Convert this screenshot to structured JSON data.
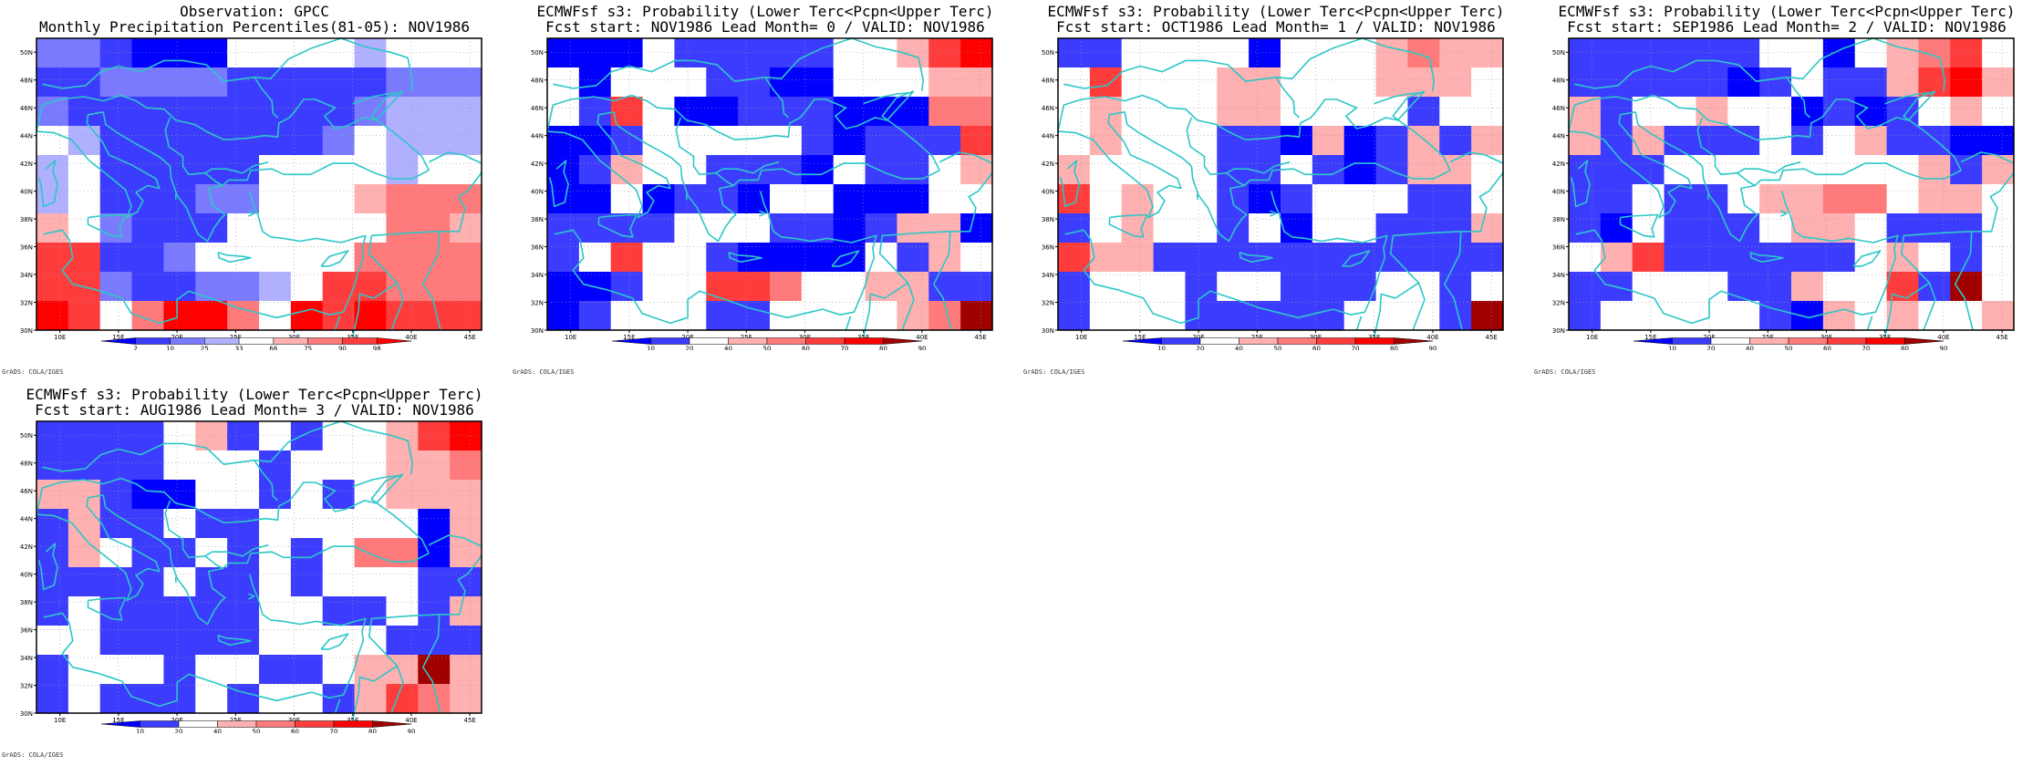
{
  "lat_labels": [
    "50N",
    "48N",
    "46N",
    "44N",
    "42N",
    "40N",
    "38N",
    "36N",
    "34N",
    "32N",
    "30N"
  ],
  "lon_labels": [
    "10E",
    "15E",
    "20E",
    "25E",
    "30E",
    "35E",
    "40E",
    "45E"
  ],
  "credit": "GrADS: COLA/IGES",
  "coastline_color": "#2cc7c7",
  "grid_rows": 10,
  "grid_cols": 14,
  "palettes": {
    "percentile": [
      "#0000ff",
      "#3c3cff",
      "#7a7aff",
      "#b0b0ff",
      "#ffffff",
      "#ffb0b0",
      "#ff7a7a",
      "#ff3c3c",
      "#ff0000"
    ],
    "probability": [
      "#0000ff",
      "#3c3cff",
      "#ffffff",
      "#ffb0b0",
      "#ff7a7a",
      "#ff3c3c",
      "#ff0000",
      "#a00000"
    ]
  },
  "panels": [
    {
      "title1": "Observation: GPCC",
      "title2": "Monthly Precipitation Percentiles(81-05): NOV1986",
      "palette": "percentile",
      "colorbar_labels": [
        "2",
        "10",
        "25",
        "33",
        "66",
        "75",
        "90",
        "98"
      ],
      "grid": [
        "22100044443444",
        "11222211111222",
        "21111111112333",
        "43111111124333",
        "34111114444344",
        "34111224445666",
        "54211144444665",
        "77112444446666",
        "77211223477666",
        "87468864878777"
      ]
    },
    {
      "title1": "ECMWFsf s3: Probability (Lower Terc<Pcpn<Upper Terc)",
      "title2": "Fcst start: NOV1986  Lead Month= 0 / VALID: NOV1986",
      "palette": "probability",
      "colorbar_labels": [
        "10",
        "20",
        "40",
        "50",
        "60",
        "70",
        "80",
        "90"
      ],
      "grid": [
        "00021111122356",
        "20222110022233",
        "21520011100044",
        "00122222101115",
        "01322111021123",
        "00201102200022",
        "11112221101330",
        "12522100002132",
        "00122554223311",
        "01222112222347"
      ]
    },
    {
      "title1": "ECMWFsf s3: Probability (Lower Terc<Pcpn<Upper Terc)",
      "title2": "Fcst start: OCT1986  Lead Month= 1 / VALID: NOV1986",
      "palette": "probability",
      "colorbar_labels": [
        "10",
        "20",
        "40",
        "50",
        "60",
        "70",
        "80",
        "90"
      ],
      "grid": [
        "11222202223433",
        "25222332223332",
        "23222332222122",
        "23222110301313",
        "32222112101332",
        "52322101222112",
        "12322120221113",
        "53311111111111",
        "12221221112212",
        "12221111122217"
      ]
    },
    {
      "title1": "ECMWFsf s3: Probability (Lower Terc<Pcpn<Upper Terc)",
      "title2": "Fcst start: SEP1986  Lead Month= 2 / VALID: NOV1986",
      "palette": "probability",
      "colorbar_labels": [
        "10",
        "20",
        "40",
        "50",
        "60",
        "70",
        "80",
        "90"
      ],
      "grid": [
        "11111122023452",
        "11111012113563",
        "31223220101232",
        "31311121231100",
        "11122222222313",
        "11211233442332",
        "10211123321112",
        "23511111123212",
        "11222113225172",
        "12222210323223"
      ]
    },
    {
      "title1": "ECMWFsf s3: Probability (Lower Terc<Pcpn<Upper Terc)",
      "title2": "Fcst start: AUG1986  Lead Month= 3 / VALID: NOV1986",
      "palette": "probability",
      "colorbar_labels": [
        "10",
        "20",
        "40",
        "50",
        "60",
        "70",
        "80",
        "90"
      ],
      "grid": [
        "11112312122356",
        "11112221222334",
        "33100221212333",
        "13112112222203",
        "13211212124403",
        "11112112122211",
        "12111112211213",
        "22111112222111",
        "12221221123373",
        "12111212213543"
      ]
    }
  ]
}
